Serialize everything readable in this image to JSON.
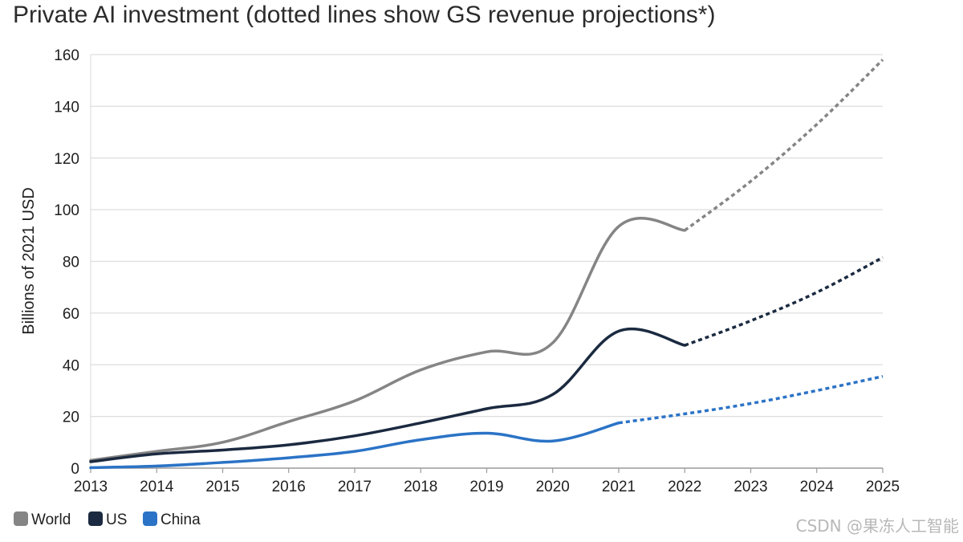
{
  "watermark": "CSDN @果冻人工智能",
  "chart_data": {
    "type": "line",
    "title": "Private AI investment (dotted lines show GS revenue projections*)",
    "xlabel": "",
    "ylabel": "Billions of 2021 USD",
    "x": [
      2013,
      2014,
      2015,
      2016,
      2017,
      2018,
      2019,
      2020,
      2021,
      2022,
      2023,
      2024,
      2025
    ],
    "ylim": [
      0,
      160
    ],
    "yticks": [
      0,
      20,
      40,
      60,
      80,
      100,
      120,
      140,
      160
    ],
    "grid": true,
    "legend_position": "bottom-left",
    "series": [
      {
        "name": "World",
        "color": "#858585",
        "actual": {
          "x": [
            2013,
            2014,
            2015,
            2016,
            2017,
            2018,
            2019,
            2020,
            2021,
            2022
          ],
          "y": [
            3,
            6.5,
            10,
            18,
            26,
            38,
            45,
            48.5,
            93.5,
            92
          ]
        },
        "projected": {
          "x": [
            2022,
            2023,
            2024,
            2025
          ],
          "y": [
            92,
            111,
            133,
            158
          ]
        }
      },
      {
        "name": "US",
        "color": "#1b2a40",
        "actual": {
          "x": [
            2013,
            2014,
            2015,
            2016,
            2017,
            2018,
            2019,
            2020,
            2021,
            2022
          ],
          "y": [
            2.5,
            5.5,
            7,
            9,
            12.5,
            17.5,
            23,
            28.5,
            53,
            47.5
          ]
        },
        "projected": {
          "x": [
            2022,
            2023,
            2024,
            2025
          ],
          "y": [
            47.5,
            57,
            68,
            81.5
          ]
        }
      },
      {
        "name": "China",
        "color": "#2b73c6",
        "actual": {
          "x": [
            2013,
            2014,
            2015,
            2016,
            2017,
            2018,
            2019,
            2020,
            2021
          ],
          "y": [
            0.2,
            0.8,
            2.2,
            4,
            6.5,
            11,
            13.5,
            10.5,
            17.5
          ]
        },
        "projected": {
          "x": [
            2021,
            2022,
            2023,
            2024,
            2025
          ],
          "y": [
            17.5,
            21,
            25,
            30,
            35.5
          ]
        }
      }
    ]
  }
}
